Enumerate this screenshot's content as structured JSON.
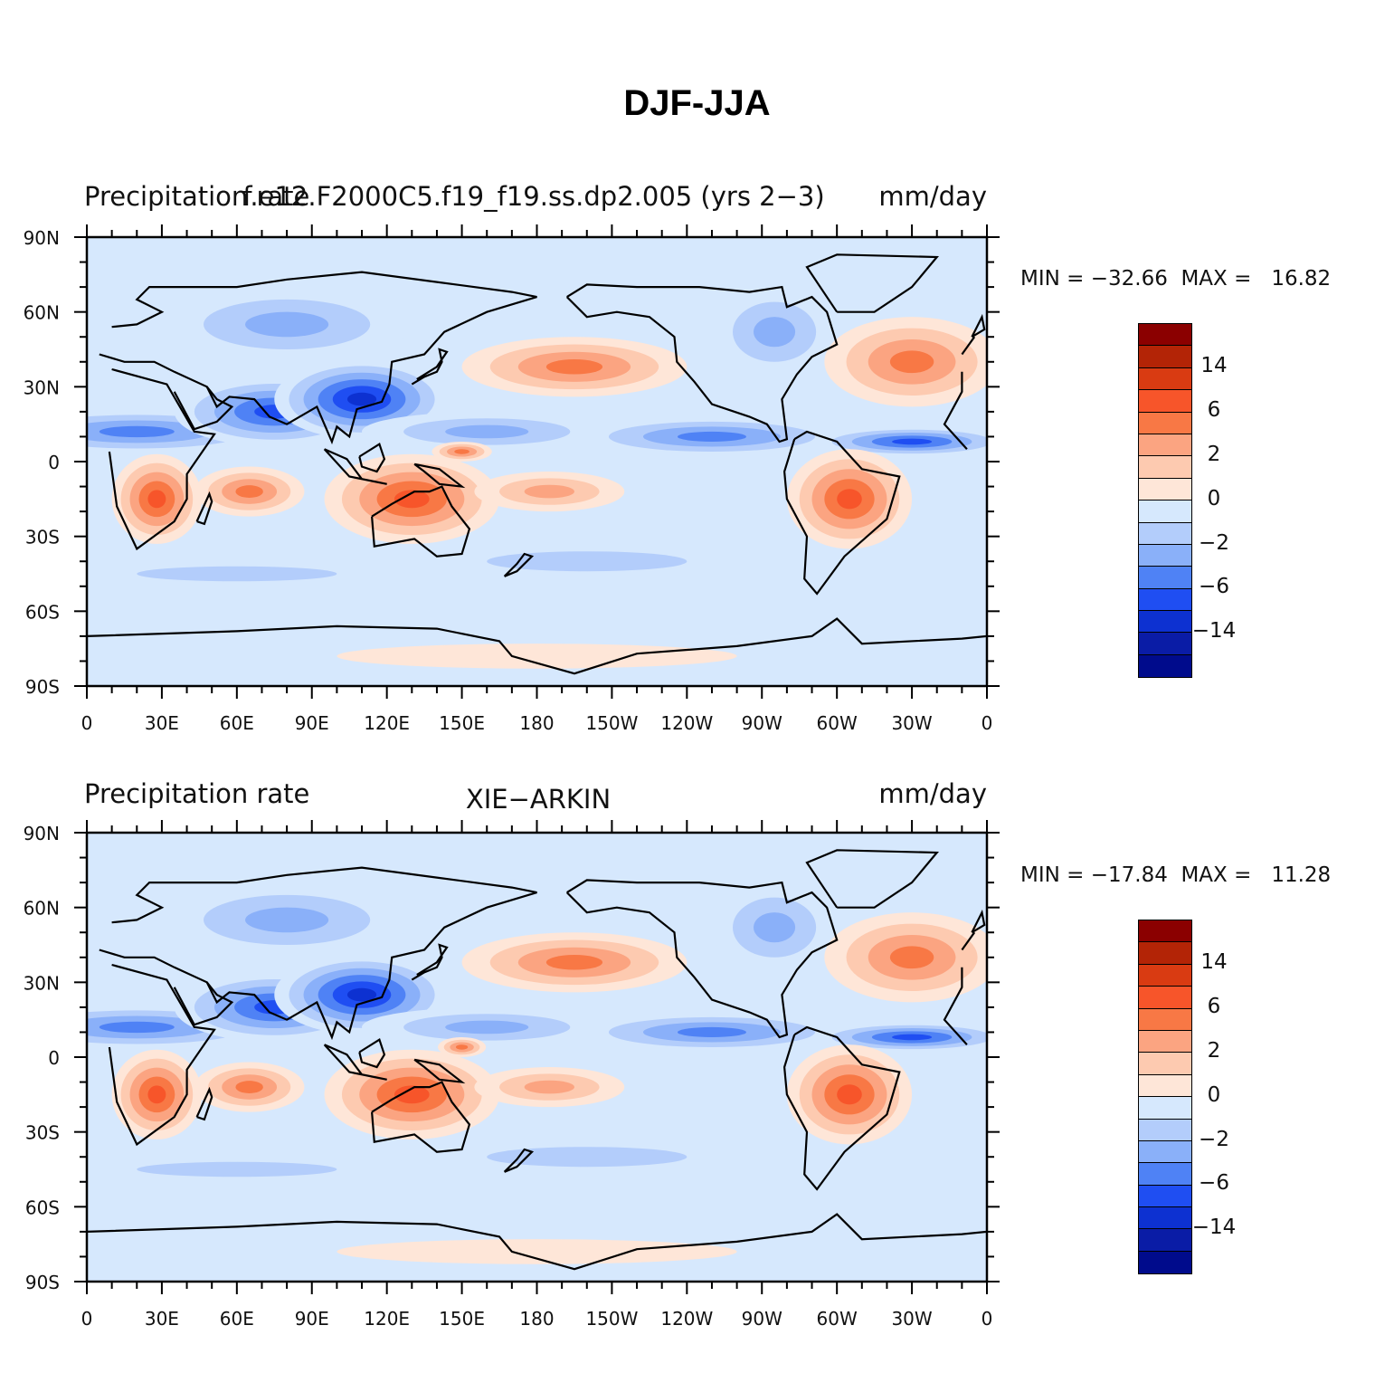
{
  "title": "DJF-JJA",
  "x_ticks": [
    "0",
    "30E",
    "60E",
    "90E",
    "120E",
    "150E",
    "180",
    "150W",
    "120W",
    "90W",
    "60W",
    "30W",
    "0"
  ],
  "y_ticks": [
    "90N",
    "60N",
    "30N",
    "0",
    "30S",
    "60S",
    "90S"
  ],
  "colorbar": {
    "colors": [
      "#8b0000",
      "#b32406",
      "#d93b12",
      "#f7552a",
      "#f87845",
      "#fba481",
      "#fdcab0",
      "#fee6d8",
      "#d6e8fd",
      "#b3cdfb",
      "#8ab0f9",
      "#4f82f5",
      "#1f4ef2",
      "#0d31d1",
      "#0a1ca6",
      "#000b8c"
    ],
    "labels": [
      "14",
      "6",
      "2",
      "0",
      "−2",
      "−6",
      "−14"
    ]
  },
  "panels": [
    {
      "left_text": "Precipitation rate",
      "center_text": "f.e12.F2000C5.f19_f19.ss.dp2.005 (yrs 2−3)",
      "right_text": "mm/day",
      "minmax": "MIN = −32.66  MAX =   16.82",
      "field": {
        "variable": "Precipitation rate",
        "units": "mm/day",
        "dataset": "f.e12.F2000C5.f19_f19.ss.dp2.005 (yrs 2−3)",
        "min": -32.66,
        "max": 16.82
      }
    },
    {
      "left_text": "Precipitation rate",
      "center_text": "XIE−ARKIN",
      "right_text": "mm/day",
      "minmax": "MIN = −17.84  MAX =   11.28",
      "field": {
        "variable": "Precipitation rate",
        "units": "mm/day",
        "dataset": "XIE−ARKIN",
        "min": -17.84,
        "max": 11.28
      }
    }
  ]
}
